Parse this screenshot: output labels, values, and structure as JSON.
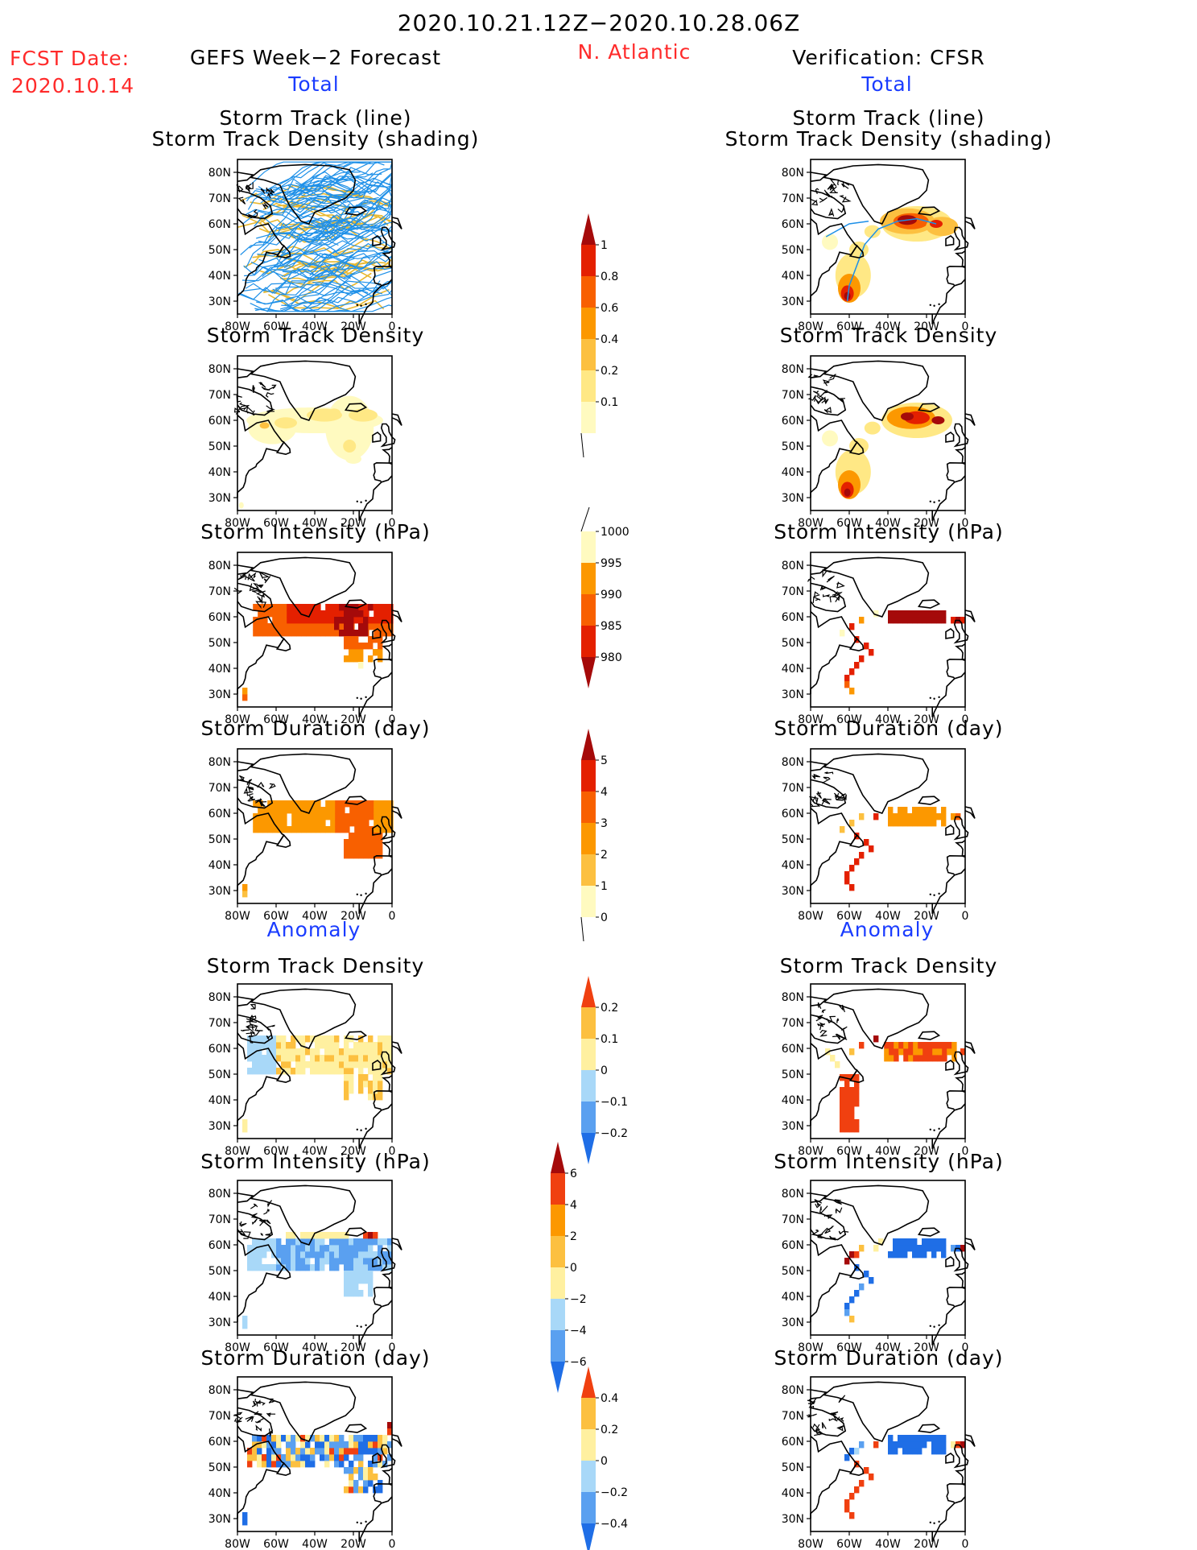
{
  "header": {
    "date_range": "2020.10.21.12Z−2020.10.28.06Z",
    "fcst_label": "FCST Date:",
    "fcst_date": "2020.10.14",
    "left_title": "GEFS Week−2 Forecast",
    "region": "N. Atlantic",
    "right_title": "Verification: CFSR",
    "total_label": "Total",
    "anomaly_label": "Anomaly"
  },
  "panel_titles": {
    "track_line": "Storm Track (line)",
    "track_shading": "Storm Track Density (shading)",
    "density": "Storm Track Density",
    "intensity": "Storm Intensity (hPa)",
    "duration": "Storm Duration (day)"
  },
  "map_axes": {
    "lat_ticks": [
      "80N",
      "70N",
      "60N",
      "50N",
      "40N",
      "30N"
    ],
    "lon_ticks": [
      "80W",
      "60W",
      "40W",
      "20W",
      "0"
    ]
  },
  "colors": {
    "seq_density": [
      "#fffac0",
      "#ffe885",
      "#fcc040",
      "#fc9800",
      "#f86000",
      "#e42000",
      "#a50a0a"
    ],
    "seq_intensity": [
      "#a50a0a",
      "#e42000",
      "#f86000",
      "#fc9800",
      "#fffac0"
    ],
    "seq_duration": [
      "#fffac0",
      "#fcc040",
      "#fc9800",
      "#f86000",
      "#e42000",
      "#a50a0a"
    ],
    "div_blue_red": [
      "#1f6ee6",
      "#5aa0f0",
      "#a8d8f8",
      "#fff0a0",
      "#fcc040",
      "#fc9800",
      "#f04010",
      "#a50a0a"
    ],
    "track_lines": "#1e90e8",
    "track_gold": "#e8b830",
    "map_outline": "#000000"
  },
  "colorbars": [
    {
      "id": "total-density",
      "labels": [
        "1",
        "0.8",
        "0.6",
        "0.4",
        "0.2",
        "0.1"
      ]
    },
    {
      "id": "total-intensity",
      "labels": [
        "1000",
        "995",
        "990",
        "985",
        "980"
      ]
    },
    {
      "id": "total-duration",
      "labels": [
        "5",
        "4",
        "3",
        "2",
        "1",
        "0"
      ]
    },
    {
      "id": "anom-density",
      "labels": [
        "0.2",
        "0.1",
        "0",
        "−0.1",
        "−0.2"
      ]
    },
    {
      "id": "anom-intensity",
      "labels": [
        "6",
        "4",
        "2",
        "0",
        "−2",
        "−4",
        "−6"
      ]
    },
    {
      "id": "anom-duration",
      "labels": [
        "0.4",
        "0.2",
        "0",
        "−0.2",
        "−0.4"
      ]
    }
  ],
  "chart_data": [
    {
      "type": "heatmap",
      "title": "Storm Track (line) / Storm Track Density (shading)",
      "side": "GEFS Week-2 Forecast",
      "section": "Total",
      "xlim": [
        "80W",
        "0"
      ],
      "ylim": [
        "25N",
        "85N"
      ]
    },
    {
      "type": "heatmap",
      "title": "Storm Track Density",
      "side": "GEFS Week-2 Forecast",
      "section": "Total",
      "levels": [
        0.1,
        0.2,
        0.4,
        0.6,
        0.8,
        1
      ]
    },
    {
      "type": "heatmap",
      "title": "Storm Intensity (hPa)",
      "side": "GEFS Week-2 Forecast",
      "section": "Total",
      "levels": [
        980,
        985,
        990,
        995,
        1000
      ]
    },
    {
      "type": "heatmap",
      "title": "Storm Duration (day)",
      "side": "GEFS Week-2 Forecast",
      "section": "Total",
      "levels": [
        0,
        1,
        2,
        3,
        4,
        5
      ]
    },
    {
      "type": "heatmap",
      "title": "Storm Track Density",
      "side": "GEFS Week-2 Forecast",
      "section": "Anomaly",
      "levels": [
        -0.2,
        -0.1,
        0,
        0.1,
        0.2
      ]
    },
    {
      "type": "heatmap",
      "title": "Storm Intensity (hPa)",
      "side": "GEFS Week-2 Forecast",
      "section": "Anomaly",
      "levels": [
        -6,
        -4,
        -2,
        0,
        2,
        4,
        6
      ]
    },
    {
      "type": "heatmap",
      "title": "Storm Duration (day)",
      "side": "GEFS Week-2 Forecast",
      "section": "Anomaly",
      "levels": [
        -0.4,
        -0.2,
        0,
        0.2,
        0.4
      ]
    },
    {
      "type": "heatmap",
      "title": "Storm Track (line) / Storm Track Density (shading)",
      "side": "Verification: CFSR",
      "section": "Total"
    },
    {
      "type": "heatmap",
      "title": "Storm Track Density",
      "side": "Verification: CFSR",
      "section": "Total"
    },
    {
      "type": "heatmap",
      "title": "Storm Intensity (hPa)",
      "side": "Verification: CFSR",
      "section": "Total"
    },
    {
      "type": "heatmap",
      "title": "Storm Duration (day)",
      "side": "Verification: CFSR",
      "section": "Total"
    },
    {
      "type": "heatmap",
      "title": "Storm Track Density",
      "side": "Verification: CFSR",
      "section": "Anomaly"
    },
    {
      "type": "heatmap",
      "title": "Storm Intensity (hPa)",
      "side": "Verification: CFSR",
      "section": "Anomaly"
    },
    {
      "type": "heatmap",
      "title": "Storm Duration (day)",
      "side": "Verification: CFSR",
      "section": "Anomaly"
    }
  ]
}
